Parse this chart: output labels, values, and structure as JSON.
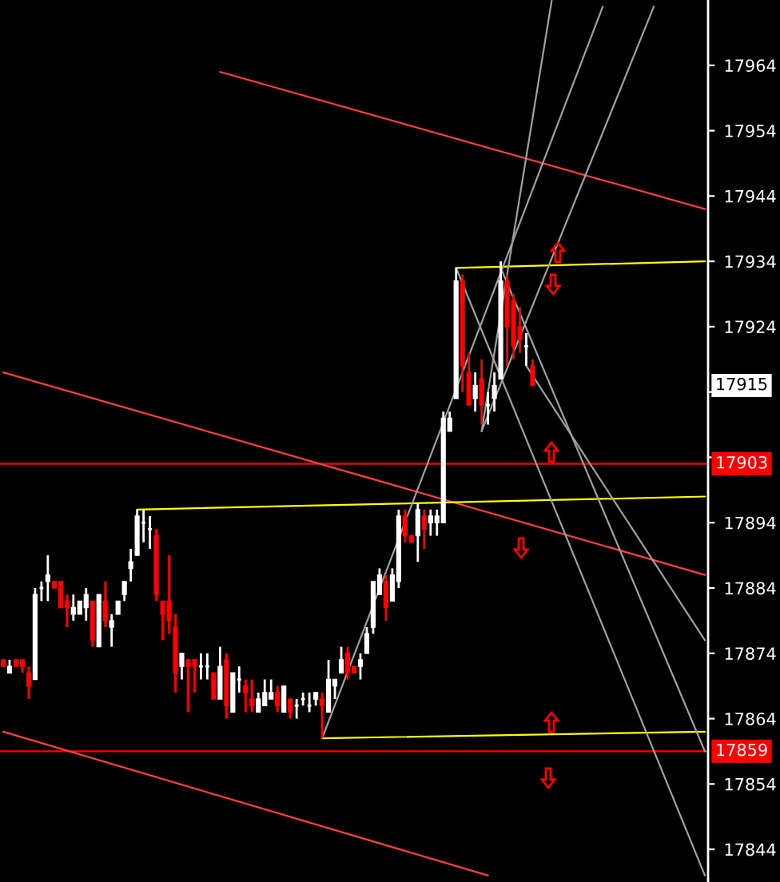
{
  "chart_data": {
    "type": "candlestick",
    "categories": [
      null,
      null,
      null,
      null,
      null,
      null,
      null,
      null,
      null,
      null,
      null,
      null,
      null,
      null,
      null,
      null,
      null,
      null,
      null,
      null,
      null,
      null,
      null,
      null,
      null,
      null,
      null,
      null,
      null,
      null,
      null,
      null,
      null,
      null,
      null,
      null,
      null,
      null,
      null,
      null,
      null,
      null,
      null,
      null,
      null,
      null,
      null,
      null,
      null,
      null,
      null,
      null,
      null,
      null,
      null,
      null,
      null,
      null,
      null,
      null,
      null,
      null,
      null,
      null,
      null,
      null,
      null,
      null,
      null,
      null,
      null,
      null,
      null,
      null,
      null,
      null,
      null,
      null,
      null,
      null,
      null,
      null,
      null,
      null,
      null,
      null,
      null,
      null,
      null,
      null,
      null,
      null,
      null,
      null,
      null,
      null,
      null,
      null,
      null,
      null,
      null,
      null,
      null,
      null,
      null,
      null,
      null,
      null,
      null,
      null,
      null
    ],
    "ohlc": [
      [
        17873,
        17873,
        17872,
        17872
      ],
      [
        17871,
        17873,
        17871,
        17872
      ],
      [
        17873,
        17873,
        17872,
        17872
      ],
      [
        17873,
        17873,
        17871,
        17872
      ],
      [
        17871,
        17872,
        17867,
        17869
      ],
      [
        17870,
        17884,
        17870,
        17883
      ],
      [
        17884,
        17885,
        17882,
        17884
      ],
      [
        17885,
        17889,
        17882,
        17886
      ],
      [
        17885,
        17885,
        17884,
        17884
      ],
      [
        17885,
        17885,
        17881,
        17881
      ],
      [
        17882,
        17883,
        17878,
        17881
      ],
      [
        17880,
        17883,
        17879,
        17881
      ],
      [
        17880,
        17882,
        17880,
        17882
      ],
      [
        17881,
        17884,
        17879,
        17883
      ],
      [
        17882,
        17882,
        17875,
        17876
      ],
      [
        17875,
        17883,
        17875,
        17883
      ],
      [
        17882,
        17885,
        17878,
        17879
      ],
      [
        17878,
        17880,
        17875,
        17879
      ],
      [
        17880,
        17882,
        17880,
        17882
      ],
      [
        17883,
        17885,
        17882,
        17885
      ],
      [
        17887,
        17890,
        17885,
        17888
      ],
      [
        17889,
        17896,
        17889,
        17895
      ],
      [
        17894,
        17896,
        17891,
        17894
      ],
      [
        17893,
        17895,
        17890,
        17893
      ],
      [
        17892,
        17893,
        17882,
        17883
      ],
      [
        17882,
        17882,
        17876,
        17880
      ],
      [
        17882,
        17889,
        17877,
        17879
      ],
      [
        17878,
        17880,
        17868,
        17871
      ],
      [
        17872,
        17874,
        17870,
        17874
      ],
      [
        17873,
        17873,
        17865,
        17872
      ],
      [
        17873,
        17873,
        17868,
        17872
      ],
      [
        17872,
        17874,
        17870,
        17872
      ],
      [
        17872,
        17874,
        17870,
        17872
      ],
      [
        17871,
        17871,
        17867,
        17867
      ],
      [
        17867,
        17875,
        17867,
        17872
      ],
      [
        17873,
        17874,
        17864,
        17866
      ],
      [
        17865,
        17871,
        17865,
        17871
      ],
      [
        17870,
        17872,
        17868,
        17870
      ],
      [
        17869,
        17870,
        17865,
        17868
      ],
      [
        17867,
        17870,
        17865,
        17866
      ],
      [
        17865,
        17868,
        17865,
        17867
      ],
      [
        17866,
        17870,
        17866,
        17868
      ],
      [
        17867,
        17870,
        17867,
        17868
      ],
      [
        17868,
        17869,
        17865,
        17866
      ],
      [
        17865,
        17869,
        17865,
        17869
      ],
      [
        17867,
        17867,
        17864,
        17865
      ],
      [
        17866,
        17867,
        17864,
        17866
      ],
      [
        17867,
        17868,
        17866,
        17867
      ],
      [
        17866,
        17868,
        17865,
        17866
      ],
      [
        17867,
        17868,
        17866,
        17868
      ],
      [
        17867,
        17868,
        17861,
        17866
      ],
      [
        17865,
        17873,
        17865,
        17870
      ],
      [
        17869,
        17870,
        17867,
        17870
      ],
      [
        17871,
        17875,
        17871,
        17873
      ],
      [
        17874,
        17875,
        17870,
        17871
      ],
      [
        17872,
        17872,
        17871,
        17871
      ],
      [
        17872,
        17874,
        17870,
        17873
      ],
      [
        17874,
        17878,
        17874,
        17877
      ],
      [
        17878,
        17885,
        17877,
        17885
      ],
      [
        17883,
        17887,
        17883,
        17886
      ],
      [
        17885,
        17886,
        17879,
        17881
      ],
      [
        17882,
        17887,
        17882,
        17886
      ],
      [
        17885,
        17896,
        17884,
        17895
      ],
      [
        17895,
        17896,
        17891,
        17892
      ],
      [
        17892,
        17892,
        17891,
        17891
      ],
      [
        17892,
        17897,
        17888,
        17896
      ],
      [
        17895,
        17896,
        17890,
        17893
      ],
      [
        17894,
        17896,
        17892,
        17895
      ],
      [
        17894,
        17896,
        17892,
        17895
      ],
      [
        17894,
        17911,
        17894,
        17910
      ],
      [
        17908,
        17911,
        17908,
        17910
      ],
      [
        17913,
        17933,
        17913,
        17931
      ],
      [
        17931,
        17932,
        17914,
        17918
      ],
      [
        17917,
        17920,
        17912,
        17912
      ],
      [
        17913,
        17917,
        17911,
        17915
      ],
      [
        17916,
        17919,
        17909,
        17912
      ],
      [
        17912,
        17914,
        17909,
        17912
      ],
      [
        17913,
        17917,
        17911,
        17915
      ],
      [
        17916,
        17934,
        17916,
        17931
      ],
      [
        17931,
        17932,
        17918,
        17924
      ],
      [
        17928,
        17929,
        17919,
        17921
      ],
      [
        17924,
        17927,
        17920,
        17922
      ],
      [
        17921,
        17923,
        17918,
        17921
      ],
      [
        17918,
        17919,
        17915,
        17915
      ],
      null,
      null,
      null,
      null,
      null,
      null,
      null,
      null,
      null,
      null,
      null,
      null,
      null,
      null,
      null,
      null,
      null,
      null,
      null,
      null,
      null,
      null,
      null,
      null,
      null,
      null,
      null
    ],
    "colors": [
      "#ff0000",
      "#ffffff",
      "#ff0000",
      "#ff0000",
      "#ff0000",
      "#ffffff",
      "#ffffff",
      "#ffffff",
      "#ff0000",
      "#ff0000",
      "#ff0000",
      "#ffffff",
      "#ffffff",
      "#ffffff",
      "#ff0000",
      "#ffffff",
      "#ff0000",
      "#ffffff",
      "#ffffff",
      "#ffffff",
      "#ffffff",
      "#ffffff",
      "#ffffff",
      "#ffffff",
      "#ff0000",
      "#ff0000",
      "#ff0000",
      "#ff0000",
      "#ffffff",
      "#ff0000",
      "#ff0000",
      "#ffffff",
      "#ffffff",
      "#ff0000",
      "#ffffff",
      "#ff0000",
      "#ffffff",
      "#ffffff",
      "#ff0000",
      "#ff0000",
      "#ffffff",
      "#ffffff",
      "#ffffff",
      "#ff0000",
      "#ffffff",
      "#ff0000",
      "#ffffff",
      "#ffffff",
      "#ffffff",
      "#ffffff",
      "#ff0000",
      "#ffffff",
      "#ffffff",
      "#ffffff",
      "#ff0000",
      "#ff0000",
      "#ffffff",
      "#ffffff",
      "#ffffff",
      "#ffffff",
      "#ff0000",
      "#ffffff",
      "#ffffff",
      "#ff0000",
      "#ff0000",
      "#ffffff",
      "#ff0000",
      "#ffffff",
      "#ffffff",
      "#ffffff",
      "#ffffff",
      "#ffffff",
      "#ff0000",
      "#ff0000",
      "#ffffff",
      "#ff0000",
      "#ffffff",
      "#ffffff",
      "#ffffff",
      "#ff0000",
      "#ff0000",
      "#ff0000",
      "#ffffff",
      "#ff0000",
      null,
      null,
      null,
      null,
      null,
      null,
      null,
      null,
      null,
      null,
      null,
      null,
      null,
      null,
      null,
      null,
      null,
      null,
      null,
      null,
      null,
      null,
      null,
      null,
      null,
      null,
      null
    ],
    "series": [
      {
        "type": "line",
        "color": "#ff4040",
        "values": [
          null,
          null,
          null,
          null,
          null,
          null,
          null,
          null,
          null,
          null,
          null,
          null,
          null,
          null,
          null,
          null,
          null,
          null,
          null,
          null,
          null,
          null,
          null,
          null,
          null,
          null,
          null,
          null,
          null,
          null,
          null,
          null,
          null,
          null,
          17963,
          null,
          null,
          null,
          null,
          null,
          null,
          null,
          null,
          null,
          null,
          null,
          null,
          null,
          null,
          null,
          null,
          null,
          null,
          null,
          null,
          null,
          null,
          null,
          null,
          null,
          null,
          null,
          null,
          null,
          null,
          null,
          null,
          null,
          null,
          null,
          null,
          null,
          null,
          null,
          null,
          null,
          null,
          null,
          null,
          null,
          null,
          null,
          null,
          null,
          null,
          null,
          null,
          null,
          null,
          null,
          null,
          null,
          null,
          null,
          null,
          null,
          null,
          null,
          null,
          null,
          null,
          null,
          null,
          null,
          null,
          null,
          null,
          null,
          null,
          null,
          17942
        ]
      },
      {
        "type": "line",
        "color": "#ff4040",
        "values": [
          17917,
          null,
          null,
          null,
          null,
          null,
          null,
          null,
          null,
          null,
          null,
          null,
          null,
          null,
          null,
          null,
          null,
          null,
          null,
          null,
          null,
          null,
          null,
          null,
          null,
          null,
          null,
          null,
          null,
          null,
          null,
          null,
          null,
          null,
          null,
          null,
          null,
          null,
          null,
          null,
          null,
          null,
          null,
          null,
          null,
          null,
          null,
          null,
          null,
          null,
          null,
          null,
          null,
          null,
          null,
          null,
          null,
          null,
          null,
          null,
          null,
          null,
          null,
          null,
          null,
          null,
          null,
          null,
          null,
          null,
          null,
          null,
          null,
          null,
          null,
          null,
          null,
          null,
          null,
          null,
          null,
          null,
          null,
          null,
          null,
          null,
          null,
          null,
          null,
          null,
          null,
          null,
          null,
          null,
          null,
          null,
          null,
          null,
          null,
          null,
          null,
          null,
          null,
          null,
          null,
          null,
          null,
          null,
          null,
          null,
          17886
        ]
      },
      {
        "type": "line",
        "color": "#ff4040",
        "values": [
          17862,
          null,
          null,
          null,
          null,
          null,
          null,
          null,
          null,
          null,
          null,
          null,
          null,
          null,
          null,
          null,
          null,
          null,
          null,
          null,
          null,
          null,
          null,
          null,
          null,
          null,
          null,
          null,
          null,
          null,
          null,
          null,
          null,
          null,
          null,
          null,
          null,
          null,
          null,
          null,
          null,
          null,
          null,
          null,
          null,
          null,
          null,
          null,
          null,
          null,
          null,
          null,
          null,
          null,
          null,
          null,
          null,
          null,
          null,
          null,
          null,
          null,
          null,
          null,
          null,
          null,
          null,
          null,
          null,
          null,
          null,
          null,
          null,
          null,
          null,
          null,
          17840,
          null,
          null,
          null,
          null,
          null,
          null,
          null,
          null,
          null,
          null,
          null,
          null,
          null,
          null,
          null,
          null,
          null,
          null,
          null,
          null,
          null,
          null,
          null,
          null,
          null,
          null,
          null,
          null,
          null,
          null,
          null,
          null,
          null,
          null
        ]
      },
      {
        "type": "line",
        "color": "#ffff00",
        "values": [
          null,
          null,
          null,
          null,
          null,
          null,
          null,
          null,
          null,
          null,
          null,
          null,
          null,
          null,
          null,
          null,
          null,
          null,
          null,
          null,
          null,
          17896,
          null,
          null,
          null,
          null,
          null,
          null,
          null,
          null,
          null,
          null,
          null,
          null,
          null,
          null,
          null,
          null,
          null,
          null,
          null,
          null,
          null,
          null,
          null,
          null,
          null,
          null,
          null,
          null,
          null,
          null,
          null,
          null,
          null,
          null,
          null,
          null,
          null,
          null,
          null,
          null,
          null,
          null,
          null,
          null,
          null,
          null,
          null,
          null,
          null,
          null,
          null,
          null,
          null,
          null,
          null,
          null,
          null,
          null,
          null,
          null,
          null,
          null,
          null,
          null,
          null,
          null,
          null,
          null,
          null,
          null,
          null,
          null,
          null,
          null,
          null,
          null,
          null,
          null,
          null,
          null,
          null,
          null,
          null,
          null,
          null,
          null,
          null,
          null,
          17898
        ]
      },
      {
        "type": "line",
        "color": "#ffff00",
        "values": [
          null,
          null,
          null,
          null,
          null,
          null,
          null,
          null,
          null,
          null,
          null,
          null,
          null,
          null,
          null,
          null,
          null,
          null,
          null,
          null,
          null,
          null,
          null,
          null,
          null,
          null,
          null,
          null,
          null,
          null,
          null,
          null,
          null,
          null,
          null,
          null,
          null,
          null,
          null,
          null,
          null,
          null,
          null,
          null,
          null,
          null,
          null,
          null,
          null,
          null,
          null,
          null,
          null,
          null,
          null,
          null,
          null,
          null,
          null,
          null,
          null,
          null,
          null,
          null,
          null,
          null,
          null,
          null,
          null,
          null,
          null,
          17933,
          null,
          null,
          null,
          null,
          null,
          null,
          null,
          null,
          null,
          null,
          null,
          null,
          null,
          null,
          null,
          null,
          null,
          null,
          null,
          null,
          null,
          null,
          null,
          null,
          null,
          null,
          null,
          null,
          null,
          null,
          null,
          null,
          null,
          null,
          null,
          null,
          null,
          null,
          17934
        ]
      },
      {
        "type": "line",
        "color": "#ffff00",
        "values": [
          null,
          null,
          null,
          null,
          null,
          null,
          null,
          null,
          null,
          null,
          null,
          null,
          null,
          null,
          null,
          null,
          null,
          null,
          null,
          null,
          null,
          null,
          null,
          null,
          null,
          null,
          null,
          null,
          null,
          null,
          null,
          null,
          null,
          null,
          null,
          null,
          null,
          null,
          null,
          null,
          null,
          null,
          null,
          null,
          null,
          null,
          null,
          null,
          null,
          null,
          17861,
          null,
          null,
          null,
          null,
          null,
          null,
          null,
          null,
          null,
          null,
          null,
          null,
          null,
          null,
          null,
          null,
          null,
          null,
          null,
          null,
          null,
          null,
          null,
          null,
          null,
          null,
          null,
          null,
          null,
          null,
          null,
          null,
          null,
          null,
          null,
          null,
          null,
          null,
          null,
          null,
          null,
          null,
          null,
          null,
          null,
          null,
          null,
          null,
          null,
          null,
          null,
          null,
          null,
          null,
          null,
          null,
          null,
          null,
          null,
          17862
        ]
      },
      {
        "type": "line",
        "color": "#a0a0a0",
        "values": [
          null,
          null,
          null,
          null,
          null,
          null,
          null,
          null,
          null,
          null,
          null,
          null,
          null,
          null,
          null,
          null,
          null,
          null,
          null,
          null,
          null,
          null,
          null,
          null,
          null,
          null,
          null,
          null,
          null,
          null,
          null,
          null,
          null,
          null,
          null,
          null,
          null,
          null,
          null,
          null,
          null,
          null,
          null,
          null,
          null,
          null,
          null,
          null,
          null,
          null,
          17861,
          null,
          null,
          null,
          null,
          null,
          null,
          null,
          null,
          null,
          null,
          null,
          null,
          null,
          null,
          null,
          null,
          null,
          null,
          null,
          null,
          null,
          null,
          null,
          null,
          null,
          null,
          null,
          null,
          null,
          null,
          null,
          null,
          null,
          null,
          null,
          null,
          null,
          null,
          null,
          null,
          null,
          null,
          null,
          17973,
          null,
          null,
          null,
          null,
          null,
          null,
          null,
          null,
          null,
          null,
          null,
          null,
          null,
          null,
          null,
          null
        ]
      },
      {
        "type": "line",
        "color": "#a0a0a0",
        "values": [
          null,
          null,
          null,
          null,
          null,
          null,
          null,
          null,
          null,
          null,
          null,
          null,
          null,
          null,
          null,
          null,
          null,
          null,
          null,
          null,
          null,
          null,
          null,
          null,
          null,
          null,
          null,
          null,
          null,
          null,
          null,
          null,
          null,
          null,
          null,
          null,
          null,
          null,
          null,
          null,
          null,
          null,
          null,
          null,
          null,
          null,
          null,
          null,
          null,
          null,
          null,
          null,
          null,
          null,
          null,
          null,
          null,
          null,
          null,
          null,
          null,
          null,
          null,
          null,
          null,
          null,
          null,
          null,
          null,
          null,
          null,
          null,
          null,
          null,
          null,
          17908,
          null,
          null,
          null,
          null,
          null,
          null,
          null,
          null,
          null,
          null,
          17974,
          null,
          null,
          null,
          null,
          null,
          null,
          null,
          null,
          null,
          null,
          null,
          null,
          null,
          null,
          null,
          null,
          null,
          null,
          null,
          null,
          null,
          null,
          null,
          null
        ]
      },
      {
        "type": "line",
        "color": "#a0a0a0",
        "values": [
          null,
          null,
          null,
          null,
          null,
          null,
          null,
          null,
          null,
          null,
          null,
          null,
          null,
          null,
          null,
          null,
          null,
          null,
          null,
          null,
          null,
          null,
          null,
          null,
          null,
          null,
          null,
          null,
          null,
          null,
          null,
          null,
          null,
          null,
          null,
          null,
          null,
          null,
          null,
          null,
          null,
          null,
          null,
          null,
          null,
          null,
          null,
          null,
          null,
          null,
          null,
          null,
          null,
          null,
          null,
          null,
          null,
          null,
          null,
          null,
          null,
          null,
          null,
          null,
          null,
          null,
          null,
          null,
          null,
          null,
          null,
          null,
          null,
          null,
          null,
          17908,
          null,
          null,
          null,
          null,
          null,
          null,
          null,
          null,
          null,
          null,
          null,
          null,
          null,
          null,
          null,
          null,
          null,
          null,
          null,
          null,
          null,
          null,
          null,
          null,
          null,
          null,
          17973,
          null,
          null,
          null,
          null,
          null,
          null,
          null,
          null
        ]
      },
      {
        "type": "line",
        "color": "#a0a0a0",
        "values": [
          null,
          null,
          null,
          null,
          null,
          null,
          null,
          null,
          null,
          null,
          null,
          null,
          null,
          null,
          null,
          null,
          null,
          null,
          null,
          null,
          null,
          null,
          null,
          null,
          null,
          null,
          null,
          null,
          null,
          null,
          null,
          null,
          null,
          null,
          null,
          null,
          null,
          null,
          null,
          null,
          null,
          null,
          null,
          null,
          null,
          null,
          null,
          null,
          null,
          null,
          null,
          null,
          null,
          null,
          null,
          null,
          null,
          null,
          null,
          null,
          null,
          null,
          null,
          null,
          null,
          null,
          null,
          null,
          null,
          null,
          null,
          17933,
          null,
          null,
          null,
          null,
          null,
          null,
          null,
          null,
          null,
          null,
          null,
          null,
          null,
          null,
          null,
          null,
          null,
          null,
          null,
          null,
          null,
          null,
          null,
          null,
          null,
          null,
          null,
          null,
          null,
          null,
          null,
          null,
          null,
          null,
          null,
          null,
          null,
          null,
          17840
        ]
      },
      {
        "type": "line",
        "color": "#a0a0a0",
        "values": [
          null,
          null,
          null,
          null,
          null,
          null,
          null,
          null,
          null,
          null,
          null,
          null,
          null,
          null,
          null,
          null,
          null,
          null,
          null,
          null,
          null,
          null,
          null,
          null,
          null,
          null,
          null,
          null,
          null,
          null,
          null,
          null,
          null,
          null,
          null,
          null,
          null,
          null,
          null,
          null,
          null,
          null,
          null,
          null,
          null,
          null,
          null,
          null,
          null,
          null,
          null,
          null,
          null,
          null,
          null,
          null,
          null,
          null,
          null,
          null,
          null,
          null,
          null,
          null,
          null,
          null,
          null,
          null,
          null,
          null,
          null,
          null,
          null,
          null,
          null,
          null,
          null,
          null,
          17933,
          null,
          null,
          null,
          null,
          null,
          null,
          null,
          null,
          null,
          null,
          null,
          null,
          null,
          null,
          null,
          null,
          null,
          null,
          null,
          null,
          null,
          null,
          null,
          null,
          null,
          null,
          null,
          null,
          null,
          null,
          null,
          17859
        ]
      },
      {
        "type": "line",
        "color": "#a0a0a0",
        "values": [
          null,
          null,
          null,
          null,
          null,
          null,
          null,
          null,
          null,
          null,
          null,
          null,
          null,
          null,
          null,
          null,
          null,
          null,
          null,
          null,
          null,
          null,
          null,
          null,
          null,
          null,
          null,
          null,
          null,
          null,
          null,
          null,
          null,
          null,
          null,
          null,
          null,
          null,
          null,
          null,
          null,
          null,
          null,
          null,
          null,
          null,
          null,
          null,
          null,
          null,
          null,
          null,
          null,
          null,
          null,
          null,
          null,
          null,
          null,
          null,
          null,
          null,
          null,
          null,
          null,
          null,
          null,
          null,
          null,
          null,
          null,
          null,
          null,
          null,
          null,
          null,
          null,
          null,
          null,
          null,
          null,
          null,
          17918,
          null,
          null,
          null,
          null,
          null,
          null,
          null,
          null,
          null,
          null,
          null,
          null,
          null,
          null,
          null,
          null,
          null,
          null,
          null,
          null,
          null,
          null,
          null,
          null,
          null,
          null,
          null,
          17876
        ]
      }
    ],
    "ylim": [
      17839,
      17974
    ],
    "yticks": [
      17844,
      17854,
      17864,
      17874,
      17884,
      17894,
      {
        "value": 17904,
        "label": null
      },
      {
        "value": 17914,
        "label": null
      },
      17924,
      17934,
      17944,
      17954,
      17964
    ],
    "ref_lines": [
      {
        "axis": "y",
        "value": 17903,
        "label": "17903",
        "color": "#ff0000"
      },
      {
        "axis": "y",
        "value": 17859,
        "label": "17859",
        "color": "#ff0000"
      }
    ],
    "annotations": [
      {
        "text": "17915",
        "y": 17915
      }
    ],
    "grid": false,
    "legend": false
  }
}
